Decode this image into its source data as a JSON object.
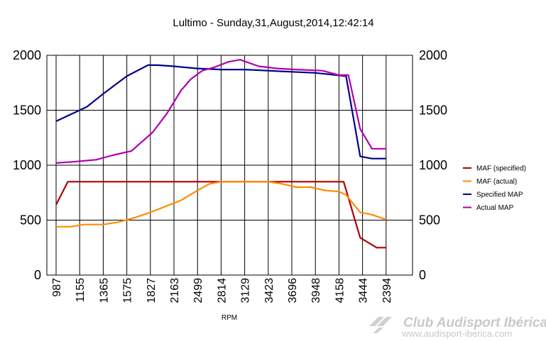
{
  "chart_data": {
    "type": "line",
    "title": "Lultimo - Sunday,31,August,2014,12:42:14",
    "xlabel": "RPM",
    "ylabel": "",
    "ylim": [
      0,
      2000
    ],
    "yticks": [
      0,
      500,
      1000,
      1500,
      2000
    ],
    "grid": true,
    "legend_position": "right",
    "categories": [
      "987",
      "1155",
      "1365",
      "1575",
      "1827",
      "2163",
      "2499",
      "2814",
      "3129",
      "3423",
      "3696",
      "3948",
      "4158",
      "3444",
      "2394"
    ],
    "x_positions": [
      0,
      1,
      2,
      3,
      4,
      5,
      6,
      7,
      8,
      9,
      10,
      11,
      12,
      13,
      14
    ],
    "series": [
      {
        "name": "MAF (specified)",
        "color": "#b00000",
        "x": [
          0,
          0.5,
          1,
          2,
          3,
          4,
          5,
          6,
          7,
          8,
          9,
          10,
          11,
          12,
          12.2,
          12.9,
          13.6,
          14
        ],
        "y": [
          640,
          850,
          850,
          850,
          850,
          850,
          850,
          850,
          850,
          850,
          850,
          850,
          850,
          850,
          850,
          340,
          250,
          250
        ]
      },
      {
        "name": "MAF (actual)",
        "color": "#ff8c00",
        "x": [
          0,
          0.6,
          1.2,
          2,
          2.6,
          3.3,
          4,
          4.7,
          5.3,
          6,
          6.5,
          7,
          7.5,
          8,
          8.5,
          9,
          9.6,
          10.2,
          10.8,
          11.4,
          12,
          12.3,
          12.9,
          13.4,
          14
        ],
        "y": [
          440,
          440,
          460,
          460,
          480,
          520,
          570,
          630,
          680,
          770,
          830,
          850,
          850,
          850,
          850,
          850,
          830,
          800,
          800,
          770,
          760,
          730,
          570,
          550,
          505
        ]
      },
      {
        "name": "Specified MAP",
        "color": "#00008b",
        "x": [
          0,
          1.3,
          2,
          3,
          3.9,
          4.3,
          5,
          6,
          7,
          8,
          9,
          10,
          11,
          12.3,
          12.9,
          13.4,
          14
        ],
        "y": [
          1400,
          1530,
          1650,
          1810,
          1910,
          1910,
          1900,
          1880,
          1870,
          1870,
          1860,
          1850,
          1840,
          1810,
          1080,
          1060,
          1060
        ]
      },
      {
        "name": "Actual MAP",
        "color": "#b000b0",
        "x": [
          0,
          0.7,
          1.7,
          2.4,
          3.2,
          4.1,
          4.7,
          5.3,
          5.7,
          6.2,
          6.7,
          7.3,
          7.8,
          8.6,
          9.4,
          10.2,
          11.3,
          12,
          12.4,
          12.9,
          13.4,
          14
        ],
        "y": [
          1020,
          1030,
          1050,
          1090,
          1130,
          1300,
          1470,
          1680,
          1780,
          1860,
          1890,
          1940,
          1960,
          1900,
          1880,
          1870,
          1860,
          1820,
          1820,
          1330,
          1150,
          1150
        ]
      }
    ]
  },
  "watermark": {
    "line1": "Club Audisport Ibérica",
    "line2": "www.audisport-iberica.com"
  }
}
